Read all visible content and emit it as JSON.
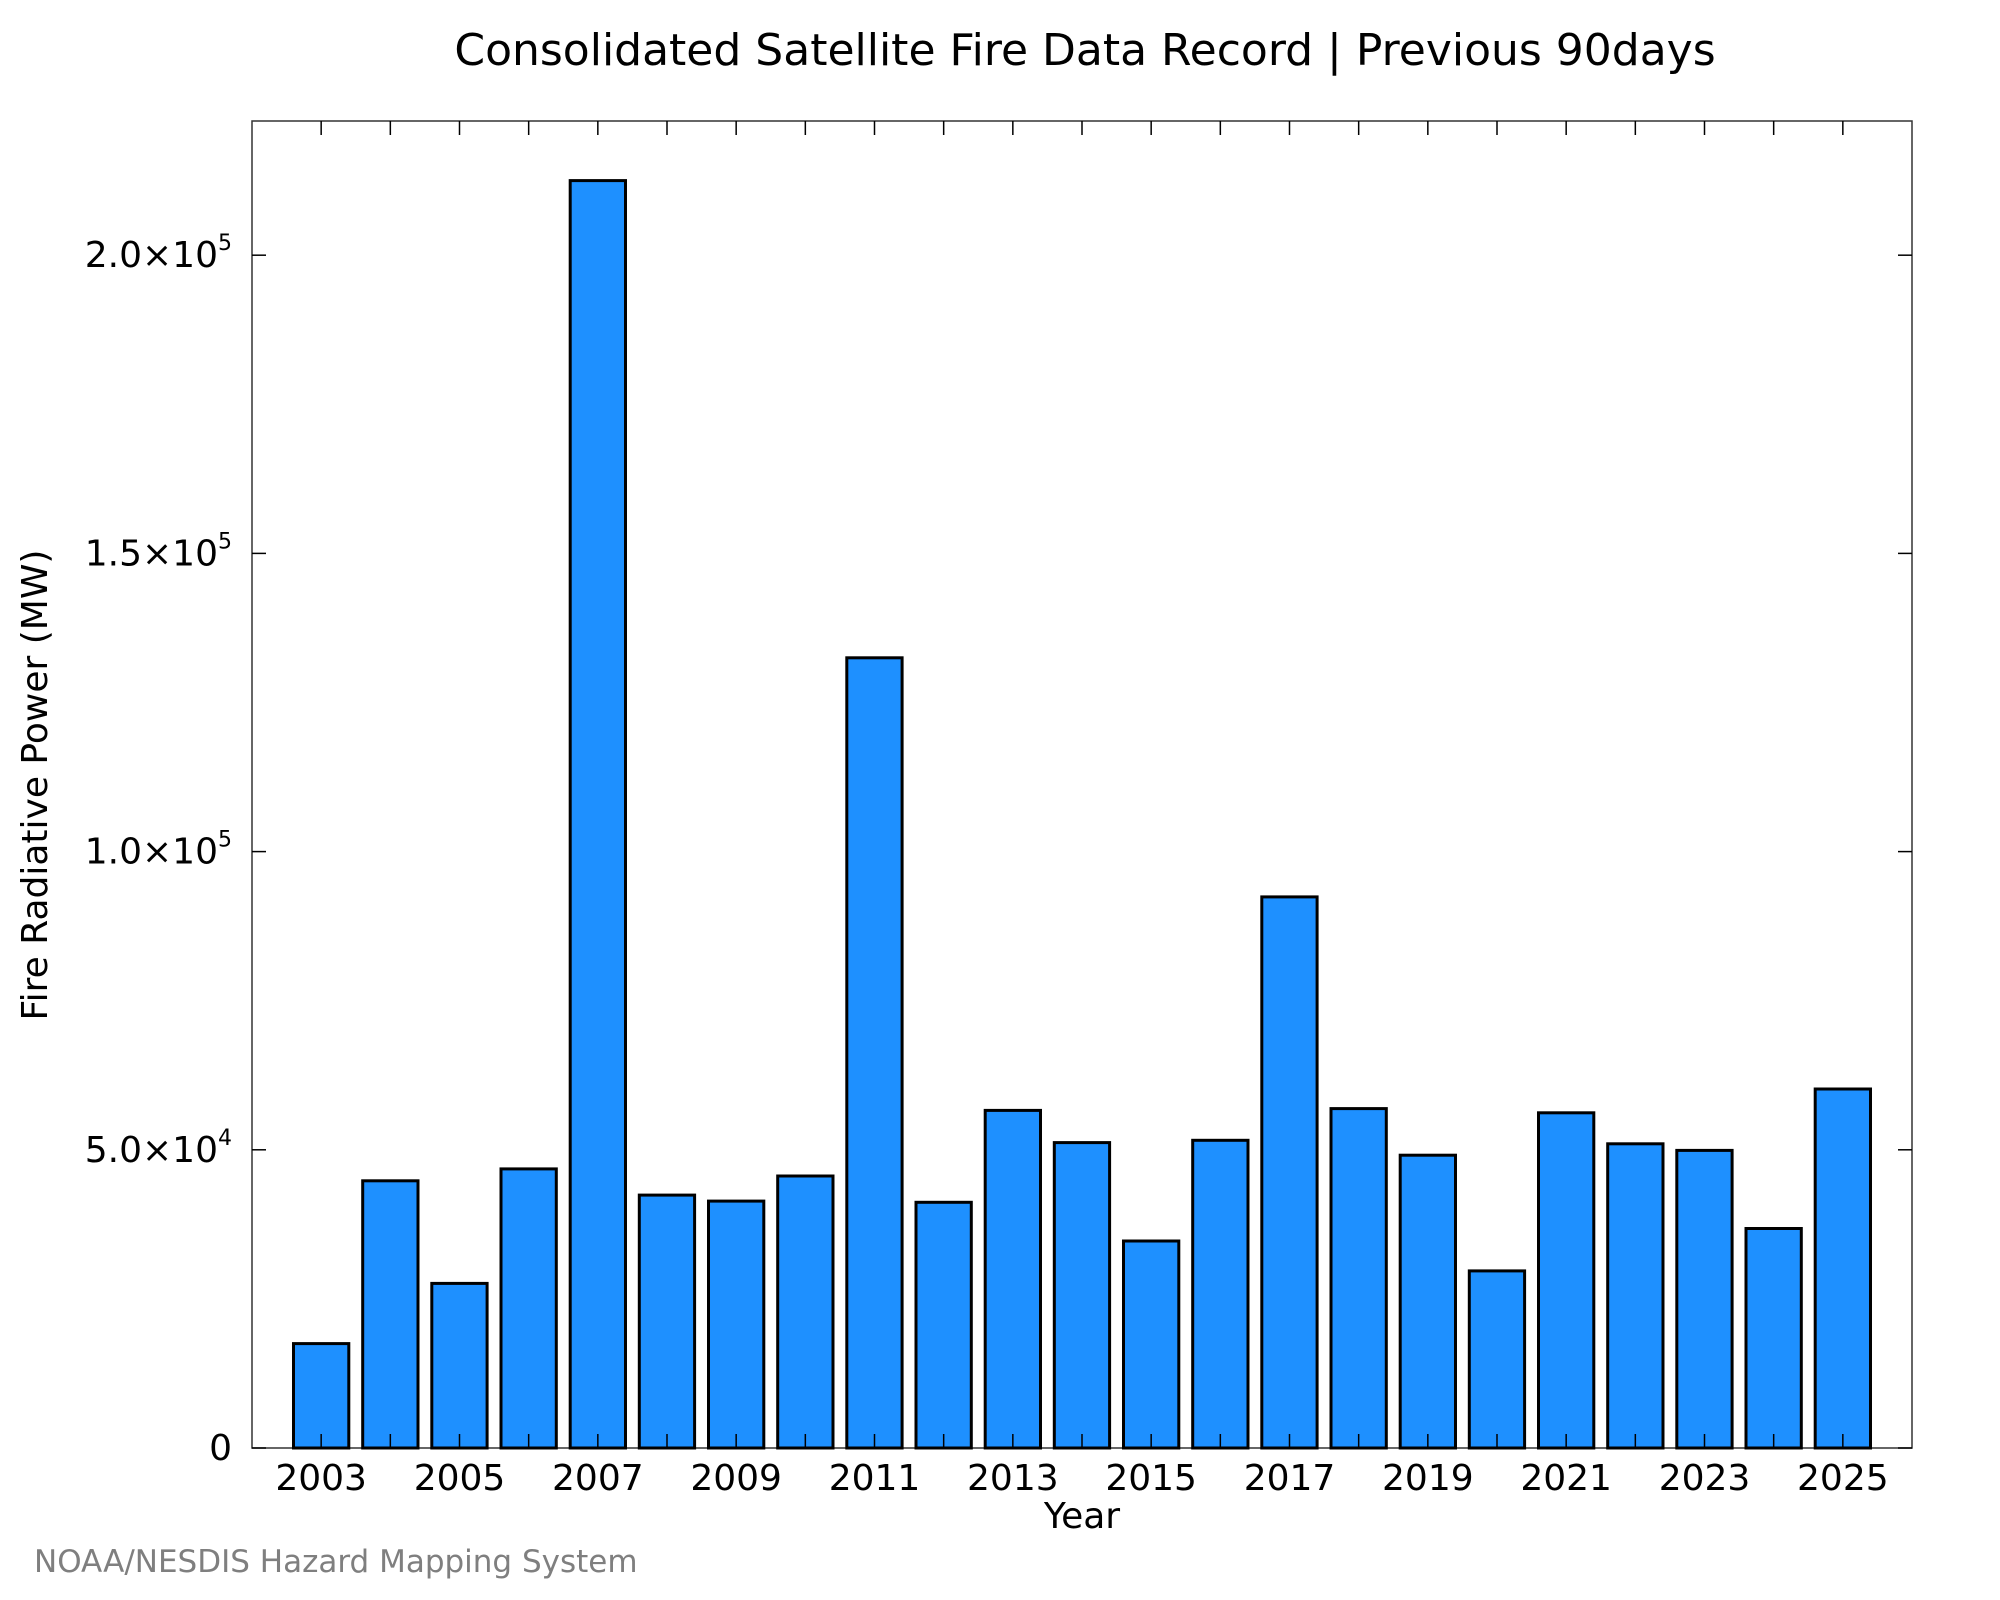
{
  "chart_data": {
    "type": "bar",
    "title": "Consolidated Satellite Fire Data Record | Previous 90days",
    "xlabel": "Year",
    "ylabel": "Fire Radiative Power (MW)",
    "ylim": [
      0,
      222500
    ],
    "grid": false,
    "bar_color": "#1e90ff",
    "categories": [
      2003,
      2004,
      2005,
      2006,
      2007,
      2008,
      2009,
      2010,
      2011,
      2012,
      2013,
      2014,
      2015,
      2016,
      2017,
      2018,
      2019,
      2020,
      2021,
      2022,
      2023,
      2024,
      2025
    ],
    "values": [
      17500,
      44800,
      27600,
      46800,
      212500,
      42400,
      41400,
      45600,
      132500,
      41200,
      56600,
      51200,
      34700,
      51600,
      92400,
      56900,
      49100,
      29700,
      56200,
      51000,
      49900,
      36800,
      60200
    ],
    "x_tick_labels": [
      "2003",
      "2005",
      "2007",
      "2009",
      "2011",
      "2013",
      "2015",
      "2017",
      "2019",
      "2021",
      "2023",
      "2025"
    ],
    "y_ticks": [
      {
        "value": 0,
        "mantissa": "0",
        "exponent": ""
      },
      {
        "value": 50000,
        "mantissa": "5.0×10",
        "exponent": "4"
      },
      {
        "value": 100000,
        "mantissa": "1.0×10",
        "exponent": "5"
      },
      {
        "value": 150000,
        "mantissa": "1.5×10",
        "exponent": "5"
      },
      {
        "value": 200000,
        "mantissa": "2.0×10",
        "exponent": "5"
      }
    ]
  },
  "credit": "NOAA/NESDIS Hazard Mapping System"
}
